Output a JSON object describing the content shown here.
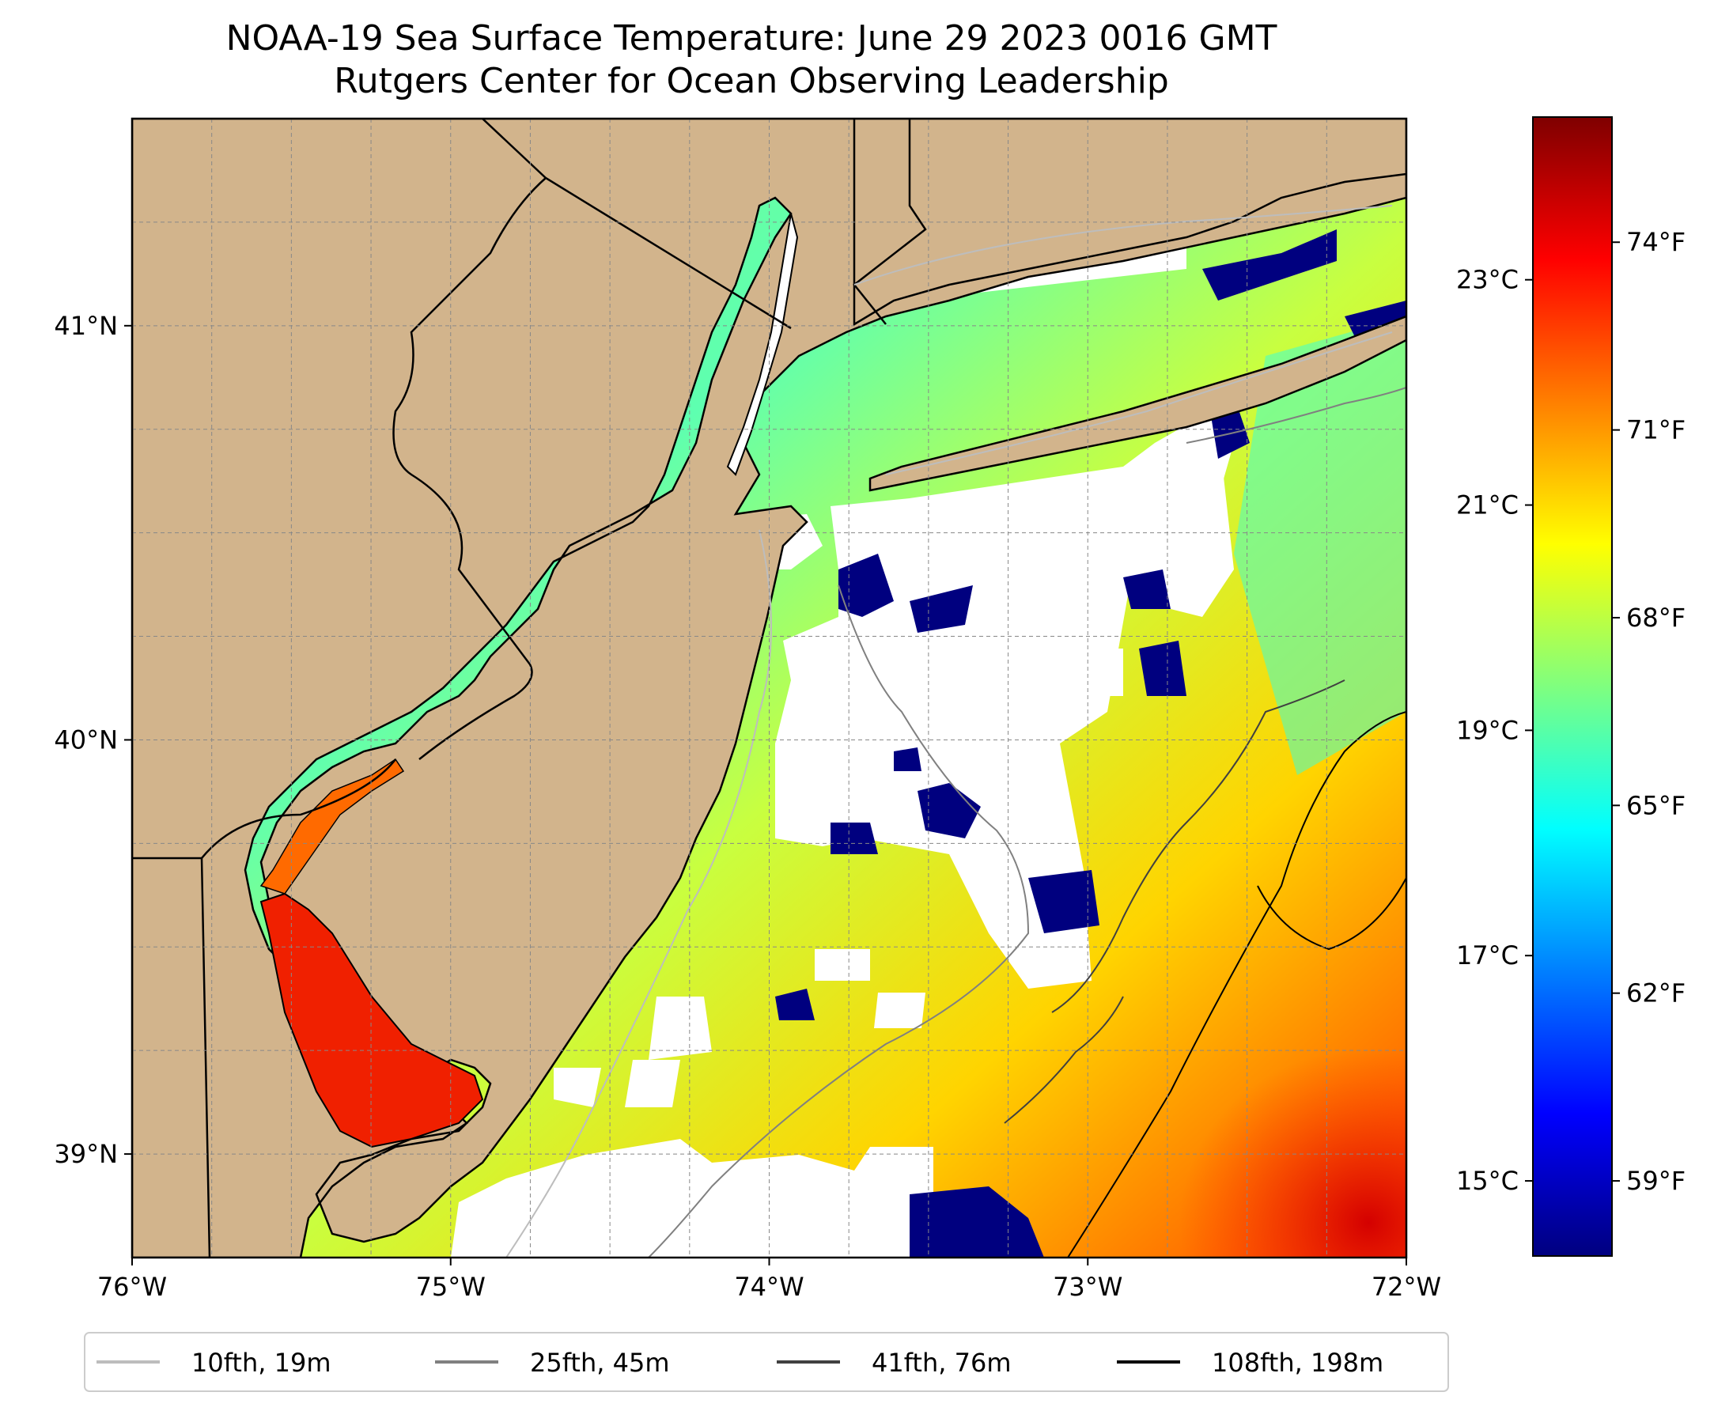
{
  "title": {
    "line1": "NOAA-19 Sea Surface Temperature: June 29 2023 0016 GMT",
    "line2": "Rutgers Center for Ocean Observing Leadership"
  },
  "map": {
    "lon_ticks": [
      -76,
      -75,
      -74,
      -73,
      -72
    ],
    "lon_labels": [
      "76°W",
      "75°W",
      "74°W",
      "73°W",
      "72°W"
    ],
    "lat_ticks": [
      39,
      40,
      41
    ],
    "lat_labels": [
      "39°N",
      "40°N",
      "41°N"
    ],
    "lon_range": [
      -76,
      -72
    ],
    "lat_range": [
      38.75,
      41.5
    ]
  },
  "colorbar": {
    "f_ticks": [
      59,
      62,
      65,
      68,
      71,
      74
    ],
    "f_labels": [
      "59°F",
      "62°F",
      "65°F",
      "68°F",
      "71°F",
      "74°F"
    ],
    "c_ticks": [
      15,
      17,
      19,
      21,
      23
    ],
    "c_labels": [
      "15°C",
      "17°C",
      "19°C",
      "21°C",
      "23°C"
    ],
    "f_range": [
      57.8,
      76.0
    ],
    "colors": [
      "#00007f",
      "#0000ff",
      "#007fff",
      "#00ffff",
      "#7fff7f",
      "#ffff00",
      "#ff7f00",
      "#ff0000",
      "#7f0000"
    ]
  },
  "legend": {
    "items": [
      {
        "label": "10fth, 19m",
        "color": "#bdbdbd"
      },
      {
        "label": "25fth, 45m",
        "color": "#808080"
      },
      {
        "label": "41fth, 76m",
        "color": "#404040"
      },
      {
        "label": "108fth, 198m",
        "color": "#000000"
      }
    ]
  },
  "colors": {
    "land": "#d2b48c",
    "no_data": "#ffffff"
  }
}
